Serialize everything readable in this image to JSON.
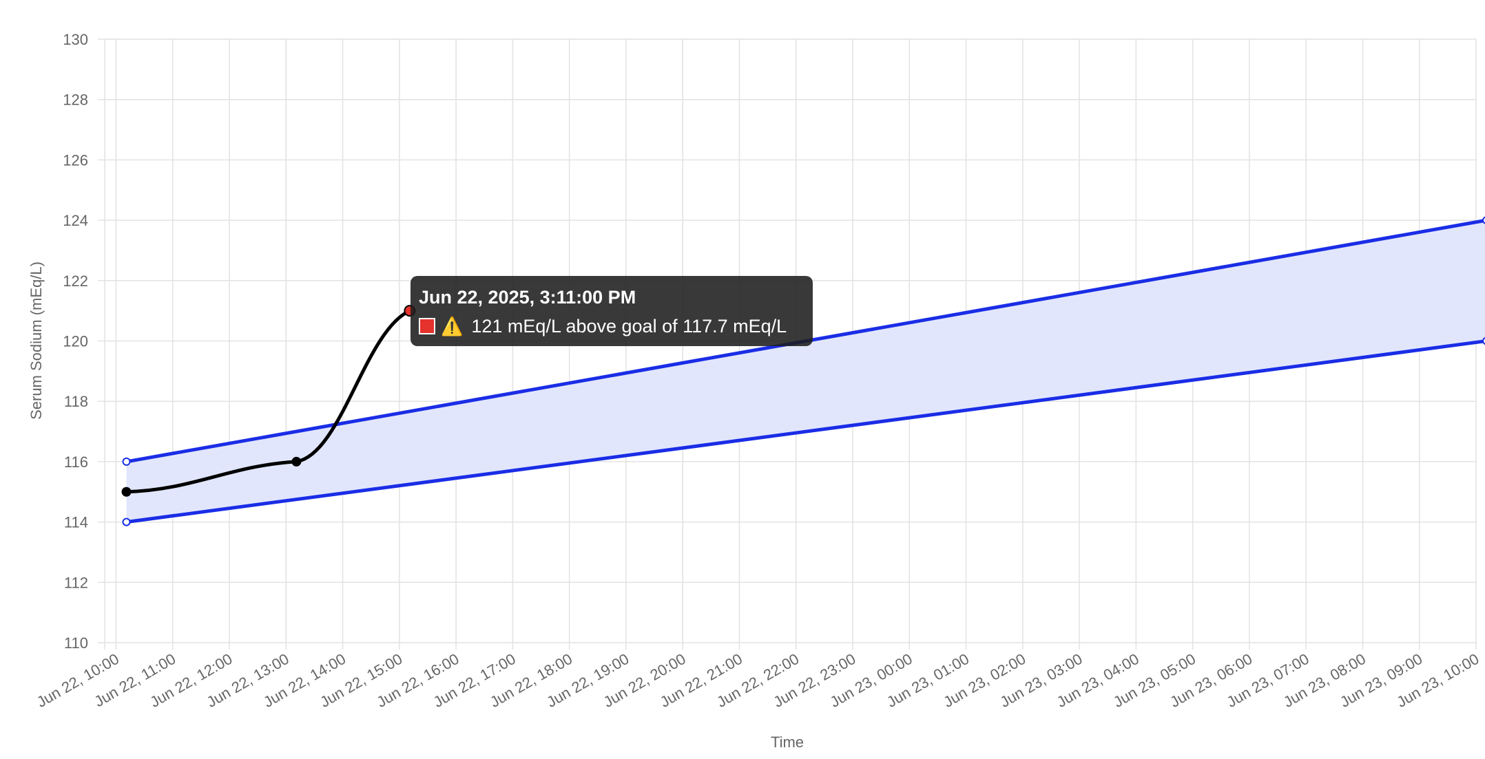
{
  "chart_data": {
    "type": "line",
    "title": "",
    "xlabel": "Time",
    "ylabel": "Serum Sodium (mEq/L)",
    "ylim": [
      110,
      130
    ],
    "xlim": [
      "Jun 22, 10:00",
      "Jun 23, 10:00"
    ],
    "grid": true,
    "y_ticks": [
      "110",
      "112",
      "114",
      "116",
      "118",
      "120",
      "122",
      "124",
      "126",
      "128",
      "130"
    ],
    "x_ticks": [
      "Jun 22, 10:00",
      "Jun 22, 11:00",
      "Jun 22, 12:00",
      "Jun 22, 13:00",
      "Jun 22, 14:00",
      "Jun 22, 15:00",
      "Jun 22, 16:00",
      "Jun 22, 17:00",
      "Jun 22, 18:00",
      "Jun 22, 19:00",
      "Jun 22, 20:00",
      "Jun 22, 21:00",
      "Jun 22, 22:00",
      "Jun 22, 23:00",
      "Jun 23, 00:00",
      "Jun 23, 01:00",
      "Jun 23, 02:00",
      "Jun 23, 03:00",
      "Jun 23, 04:00",
      "Jun 23, 05:00",
      "Jun 23, 06:00",
      "Jun 23, 07:00",
      "Jun 23, 08:00",
      "Jun 23, 09:00",
      "Jun 23, 10:00"
    ],
    "series": [
      {
        "color": "#1a2de6",
        "points": [
          {
            "x": "Jun 22, 2025, 10:11",
            "y": 116
          },
          {
            "x": "Jun 23, 2025, 10:11",
            "y": 124
          }
        ]
      },
      {
        "color": "#1a2de6",
        "points": [
          {
            "x": "Jun 22, 2025, 10:11",
            "y": 114
          },
          {
            "x": "Jun 23, 2025, 10:11",
            "y": 120
          }
        ]
      },
      {
        "color": "#000000",
        "points": [
          {
            "x": "Jun 22, 2025, 10:11",
            "y": 115
          },
          {
            "x": "Jun 22, 2025, 13:11",
            "y": 116
          },
          {
            "x": "Jun 22, 2025, 15:11",
            "y": 121
          }
        ]
      }
    ],
    "band_fill_color": "#e1e6fc",
    "highlight_point": {
      "x": "Jun 22, 2025, 15:11",
      "y": 121,
      "color": "#e5322d"
    }
  },
  "tooltip": {
    "title": "Jun 22, 2025, 3:11:00 PM",
    "warning_icon": "warning-icon",
    "text": "121 mEq/L above goal of 117.7 mEq/L",
    "swatch_color": "#e5322d"
  }
}
